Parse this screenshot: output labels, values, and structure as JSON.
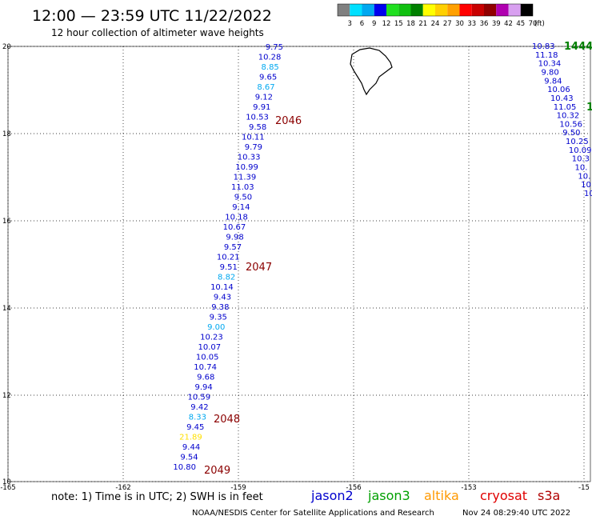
{
  "header": {
    "title": "12:00 — 23:59 UTC 11/22/2022",
    "subtitle": "12 hour collection of altimeter wave heights"
  },
  "legend": {
    "labels": [
      "3",
      "6",
      "9",
      "12",
      "15",
      "18",
      "21",
      "24",
      "27",
      "30",
      "33",
      "36",
      "39",
      "42",
      "45",
      "70",
      "(ft)"
    ],
    "colors": [
      "#808080",
      "#00e0ff",
      "#00a8f0",
      "#0000ee",
      "#20e020",
      "#10c010",
      "#008000",
      "#ffff00",
      "#ffd000",
      "#ffa000",
      "#ff0000",
      "#c80000",
      "#900000",
      "#b000b0",
      "#d8a0f0",
      "#000000"
    ]
  },
  "axes": {
    "x_ticks": [
      "-165",
      "-162",
      "-159",
      "-156",
      "-153",
      "-15"
    ],
    "y_ticks": [
      "20",
      "18",
      "16",
      "14",
      "12",
      "10"
    ]
  },
  "track_1": {
    "values": [
      {
        "v": "9.75",
        "c": "#0000cd"
      },
      {
        "v": "10.28",
        "c": "#0000cd"
      },
      {
        "v": "8.85",
        "c": "#00a8f0"
      },
      {
        "v": "9.65",
        "c": "#0000cd"
      },
      {
        "v": "8.67",
        "c": "#00a8f0"
      },
      {
        "v": "9.12",
        "c": "#0000cd"
      },
      {
        "v": "9.91",
        "c": "#0000cd"
      },
      {
        "v": "10.53",
        "c": "#0000cd"
      },
      {
        "v": "9.58",
        "c": "#0000cd"
      },
      {
        "v": "10.11",
        "c": "#0000cd"
      },
      {
        "v": "9.79",
        "c": "#0000cd"
      },
      {
        "v": "10.33",
        "c": "#0000cd"
      },
      {
        "v": "10.99",
        "c": "#0000cd"
      },
      {
        "v": "11.39",
        "c": "#0000cd"
      },
      {
        "v": "11.03",
        "c": "#0000cd"
      },
      {
        "v": "9.50",
        "c": "#0000cd"
      },
      {
        "v": "9.14",
        "c": "#0000cd"
      },
      {
        "v": "10.18",
        "c": "#0000cd"
      },
      {
        "v": "10.67",
        "c": "#0000cd"
      },
      {
        "v": "9.98",
        "c": "#0000cd"
      },
      {
        "v": "9.57",
        "c": "#0000cd"
      },
      {
        "v": "10.21",
        "c": "#0000cd"
      },
      {
        "v": "9.51",
        "c": "#0000cd"
      },
      {
        "v": "8.82",
        "c": "#00a8f0"
      },
      {
        "v": "10.14",
        "c": "#0000cd"
      },
      {
        "v": "9.43",
        "c": "#0000cd"
      },
      {
        "v": "9.38",
        "c": "#0000cd"
      },
      {
        "v": "9.35",
        "c": "#0000cd"
      },
      {
        "v": "9.00",
        "c": "#00a8f0"
      },
      {
        "v": "10.23",
        "c": "#0000cd"
      },
      {
        "v": "10.07",
        "c": "#0000cd"
      },
      {
        "v": "10.05",
        "c": "#0000cd"
      },
      {
        "v": "10.74",
        "c": "#0000cd"
      },
      {
        "v": "9.68",
        "c": "#0000cd"
      },
      {
        "v": "9.94",
        "c": "#0000cd"
      },
      {
        "v": "10.59",
        "c": "#0000cd"
      },
      {
        "v": "9.42",
        "c": "#0000cd"
      },
      {
        "v": "8.33",
        "c": "#00a8f0"
      },
      {
        "v": "9.45",
        "c": "#0000cd"
      },
      {
        "v": "21.89",
        "c": "#ffe000"
      },
      {
        "v": "9.44",
        "c": "#0000cd"
      },
      {
        "v": "9.54",
        "c": "#0000cd"
      },
      {
        "v": "10.80",
        "c": "#0000cd"
      }
    ],
    "pass_labels": [
      "2046",
      "2047",
      "2048",
      "2049"
    ]
  },
  "track_2": {
    "values": [
      {
        "v": "10.83",
        "c": "#0000cd"
      },
      {
        "v": "11.18",
        "c": "#0000cd"
      },
      {
        "v": "10.34",
        "c": "#0000cd"
      },
      {
        "v": "9.80",
        "c": "#0000cd"
      },
      {
        "v": "9.84",
        "c": "#0000cd"
      },
      {
        "v": "10.06",
        "c": "#0000cd"
      },
      {
        "v": "10.43",
        "c": "#0000cd"
      },
      {
        "v": "11.05",
        "c": "#0000cd"
      },
      {
        "v": "10.32",
        "c": "#0000cd"
      },
      {
        "v": "10.56",
        "c": "#0000cd"
      },
      {
        "v": "9.50",
        "c": "#0000cd"
      },
      {
        "v": "10.25",
        "c": "#0000cd"
      },
      {
        "v": "10.09",
        "c": "#0000cd"
      },
      {
        "v": "10.3",
        "c": "#0000cd"
      },
      {
        "v": "10.",
        "c": "#0000cd"
      },
      {
        "v": "10.",
        "c": "#0000cd"
      },
      {
        "v": "10",
        "c": "#0000cd"
      },
      {
        "v": "10",
        "c": "#0000cd"
      }
    ],
    "pass_labels": [
      "1444",
      "1"
    ]
  },
  "footer": {
    "note": "note:  1) Time is in UTC;  2) SWH is in feet",
    "satellites": [
      {
        "name": "jason2",
        "color": "#0000cd"
      },
      {
        "name": "jason3",
        "color": "#00a000"
      },
      {
        "name": "altika",
        "color": "#ff9900"
      },
      {
        "name": "cryosat",
        "color": "#e00000"
      },
      {
        "name": "s3a",
        "color": "#b00000"
      }
    ],
    "credit": "NOAA/NESDIS Center for Satellite Applications and Research",
    "timestamp": "Nov 24 08:29:40 UTC 2022"
  }
}
